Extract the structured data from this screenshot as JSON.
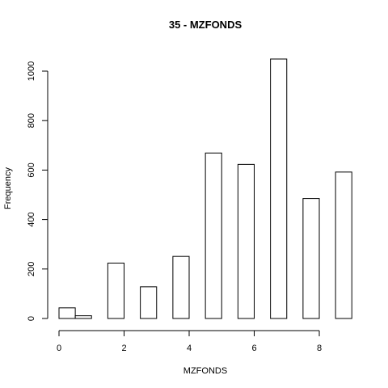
{
  "chart_data": {
    "type": "bar",
    "title": "35 - MZFONDS",
    "xlabel": "MZFONDS",
    "ylabel": "Frequency",
    "bins": [
      {
        "x0": 0.0,
        "x1": 0.5,
        "value": 43
      },
      {
        "x0": 0.5,
        "x1": 1.0,
        "value": 11
      },
      {
        "x0": 1.0,
        "x1": 1.5,
        "value": 0
      },
      {
        "x0": 1.5,
        "x1": 2.0,
        "value": 224
      },
      {
        "x0": 2.0,
        "x1": 2.5,
        "value": 0
      },
      {
        "x0": 2.5,
        "x1": 3.0,
        "value": 128
      },
      {
        "x0": 3.0,
        "x1": 3.5,
        "value": 0
      },
      {
        "x0": 3.5,
        "x1": 4.0,
        "value": 251
      },
      {
        "x0": 4.0,
        "x1": 4.5,
        "value": 0
      },
      {
        "x0": 4.5,
        "x1": 5.0,
        "value": 669
      },
      {
        "x0": 5.0,
        "x1": 5.5,
        "value": 0
      },
      {
        "x0": 5.5,
        "x1": 6.0,
        "value": 623
      },
      {
        "x0": 6.0,
        "x1": 6.5,
        "value": 0
      },
      {
        "x0": 6.5,
        "x1": 7.0,
        "value": 1049
      },
      {
        "x0": 7.0,
        "x1": 7.5,
        "value": 0
      },
      {
        "x0": 7.5,
        "x1": 8.0,
        "value": 485
      },
      {
        "x0": 8.0,
        "x1": 8.5,
        "value": 0
      },
      {
        "x0": 8.5,
        "x1": 9.0,
        "value": 592
      }
    ],
    "xlim": [
      0,
      9
    ],
    "ylim": [
      0,
      1050
    ],
    "xticks": [
      "0",
      "2",
      "4",
      "6",
      "8"
    ],
    "yticks": [
      "0",
      "200",
      "400",
      "600",
      "800",
      "1000"
    ],
    "grid": false,
    "legend": "none"
  }
}
